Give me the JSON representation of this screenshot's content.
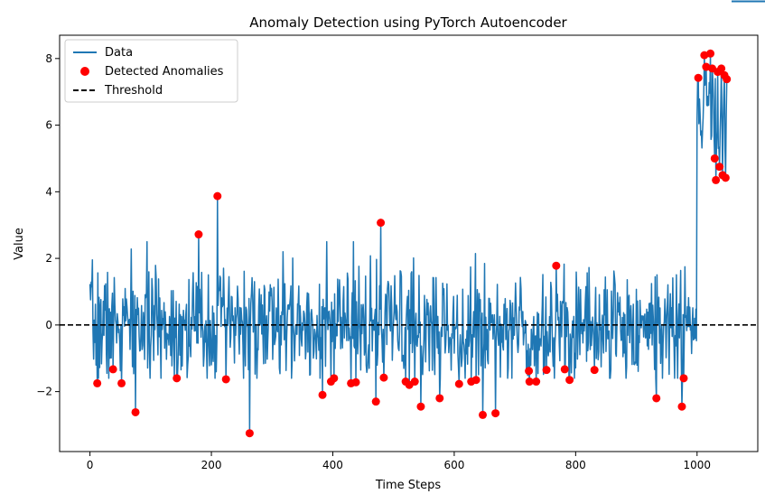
{
  "chart_data": {
    "type": "line",
    "title": "Anomaly Detection using PyTorch Autoencoder",
    "xlabel": "Time Steps",
    "ylabel": "Value",
    "xlim": [
      -50,
      1100
    ],
    "ylim": [
      -3.8,
      8.7
    ],
    "xticks": [
      0,
      200,
      400,
      600,
      800,
      1000
    ],
    "yticks": [
      -2,
      0,
      2,
      4,
      6,
      8
    ],
    "grid": false,
    "legend_position": "top-left",
    "colors": {
      "data": "#1f77b4",
      "anomaly": "#ff0000",
      "threshold": "#000000"
    },
    "series": [
      {
        "name": "Data",
        "kind": "line",
        "segments": [
          {
            "x_range": [
              0,
              999
            ],
            "generator": "noise",
            "mean": 0.0,
            "std": 0.85,
            "seed": 7
          },
          {
            "x_range": [
              1000,
              1049
            ],
            "generator": "noise",
            "mean": 6.4,
            "std": 0.8,
            "seed": 11
          }
        ],
        "anchor_points": [
          [
            12,
            -1.75
          ],
          [
            38,
            -1.33
          ],
          [
            52,
            -1.75
          ],
          [
            75,
            -2.62
          ],
          [
            143,
            -1.6
          ],
          [
            179,
            2.72
          ],
          [
            210,
            3.87
          ],
          [
            224,
            -1.63
          ],
          [
            263,
            -3.25
          ],
          [
            383,
            -2.1
          ],
          [
            397,
            -1.7
          ],
          [
            402,
            -1.6
          ],
          [
            430,
            -1.75
          ],
          [
            438,
            -1.72
          ],
          [
            471,
            -2.3
          ],
          [
            479,
            3.07
          ],
          [
            484,
            -1.58
          ],
          [
            520,
            -1.7
          ],
          [
            526,
            -1.8
          ],
          [
            535,
            -1.7
          ],
          [
            545,
            -2.45
          ],
          [
            576,
            -2.2
          ],
          [
            608,
            -1.77
          ],
          [
            628,
            -1.7
          ],
          [
            636,
            -1.65
          ],
          [
            647,
            -2.7
          ],
          [
            668,
            -2.65
          ],
          [
            723,
            -1.38
          ],
          [
            724,
            -1.7
          ],
          [
            735,
            -1.7
          ],
          [
            752,
            -1.35
          ],
          [
            768,
            1.78
          ],
          [
            782,
            -1.33
          ],
          [
            790,
            -1.65
          ],
          [
            831,
            -1.35
          ],
          [
            933,
            -2.2
          ],
          [
            975,
            -2.45
          ],
          [
            978,
            -1.6
          ],
          [
            1002,
            7.42
          ],
          [
            1012,
            8.1
          ],
          [
            1015,
            7.75
          ],
          [
            1022,
            8.15
          ],
          [
            1025,
            7.7
          ],
          [
            1029,
            5.0
          ],
          [
            1031,
            4.35
          ],
          [
            1034,
            7.6
          ],
          [
            1037,
            4.75
          ],
          [
            1040,
            7.7
          ],
          [
            1042,
            4.5
          ],
          [
            1045,
            7.5
          ],
          [
            1047,
            4.42
          ],
          [
            1049,
            7.38
          ]
        ]
      },
      {
        "name": "Detected Anomalies",
        "kind": "scatter",
        "points": [
          [
            12,
            -1.75
          ],
          [
            38,
            -1.33
          ],
          [
            52,
            -1.75
          ],
          [
            75,
            -2.62
          ],
          [
            143,
            -1.6
          ],
          [
            179,
            2.72
          ],
          [
            210,
            3.87
          ],
          [
            224,
            -1.63
          ],
          [
            263,
            -3.25
          ],
          [
            383,
            -2.1
          ],
          [
            397,
            -1.7
          ],
          [
            402,
            -1.6
          ],
          [
            430,
            -1.75
          ],
          [
            438,
            -1.72
          ],
          [
            471,
            -2.3
          ],
          [
            479,
            3.07
          ],
          [
            484,
            -1.58
          ],
          [
            520,
            -1.7
          ],
          [
            526,
            -1.8
          ],
          [
            535,
            -1.7
          ],
          [
            545,
            -2.45
          ],
          [
            576,
            -2.2
          ],
          [
            608,
            -1.77
          ],
          [
            628,
            -1.7
          ],
          [
            636,
            -1.65
          ],
          [
            647,
            -2.7
          ],
          [
            668,
            -2.65
          ],
          [
            723,
            -1.38
          ],
          [
            724,
            -1.7
          ],
          [
            735,
            -1.7
          ],
          [
            752,
            -1.35
          ],
          [
            768,
            1.78
          ],
          [
            782,
            -1.33
          ],
          [
            790,
            -1.65
          ],
          [
            831,
            -1.35
          ],
          [
            933,
            -2.2
          ],
          [
            975,
            -2.45
          ],
          [
            978,
            -1.6
          ],
          [
            1002,
            7.42
          ],
          [
            1012,
            8.1
          ],
          [
            1015,
            7.75
          ],
          [
            1022,
            8.15
          ],
          [
            1025,
            7.7
          ],
          [
            1029,
            5.0
          ],
          [
            1031,
            4.35
          ],
          [
            1034,
            7.6
          ],
          [
            1037,
            4.75
          ],
          [
            1040,
            7.7
          ],
          [
            1042,
            4.5
          ],
          [
            1045,
            7.5
          ],
          [
            1047,
            4.42
          ],
          [
            1049,
            7.38
          ]
        ]
      },
      {
        "name": "Threshold",
        "kind": "hline",
        "y": 0.0,
        "style": "dashed"
      }
    ]
  }
}
